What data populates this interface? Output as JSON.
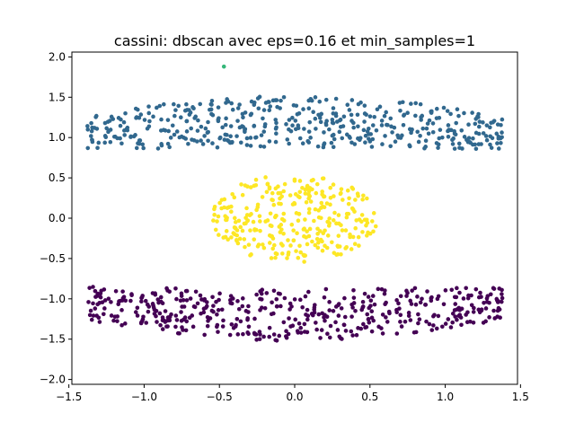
{
  "chart_data": {
    "type": "scatter",
    "title": "cassini: dbscan avec eps=0.16 et min_samples=1",
    "xlabel": "",
    "ylabel": "",
    "xlim": [
      -1.48,
      1.48
    ],
    "ylim": [
      -2.06,
      2.06
    ],
    "xticks": [
      -1.5,
      -1.0,
      -0.5,
      0.0,
      0.5,
      1.0,
      1.5
    ],
    "xtick_labels": [
      "−1.5",
      "−1.0",
      "−0.5",
      "0.0",
      "0.5",
      "1.0",
      "1.5"
    ],
    "yticks": [
      -2.0,
      -1.5,
      -1.0,
      -0.5,
      0.0,
      0.5,
      1.0,
      1.5,
      2.0
    ],
    "ytick_labels": [
      "−2.0",
      "−1.5",
      "−1.0",
      "−0.5",
      "0.0",
      "0.5",
      "1.0",
      "1.5",
      "2.0"
    ],
    "grid": false,
    "legend": false,
    "series": [
      {
        "color": "#31688e",
        "shape": "band",
        "x_range": [
          -1.38,
          1.38
        ],
        "y_center": 1.2,
        "y_spread": 0.32,
        "edge_sag": 0.15,
        "count": 460
      },
      {
        "color": "#fde725",
        "shape": "ellipse",
        "x_range": [
          -0.55,
          0.55
        ],
        "y_range": [
          -0.55,
          0.55
        ],
        "count": 300
      },
      {
        "color": "#440154",
        "shape": "band",
        "x_range": [
          -1.38,
          1.38
        ],
        "y_center": -1.2,
        "y_spread": 0.32,
        "edge_sag": 0.15,
        "count": 460
      },
      {
        "color": "#35b779",
        "shape": "points",
        "points": [
          [
            -0.47,
            1.88
          ]
        ]
      }
    ]
  }
}
